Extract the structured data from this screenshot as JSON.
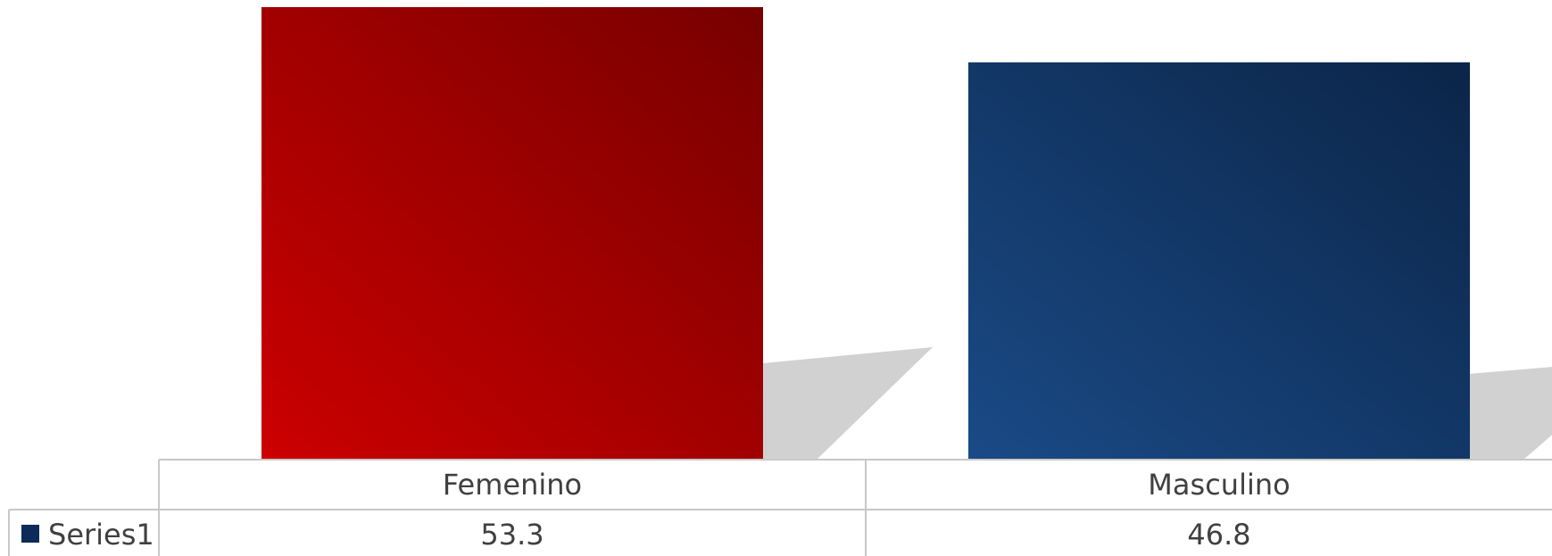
{
  "chart_data": {
    "type": "bar",
    "categories": [
      "Femenino",
      "Masculino"
    ],
    "series": [
      {
        "name": "Series1",
        "values": [
          53.3,
          46.8
        ]
      }
    ],
    "ylim": [
      0,
      53.3
    ],
    "legend": "data-table",
    "grid": false
  },
  "colors": {
    "femenino_light": "#cc0000",
    "femenino_dark": "#770000",
    "masculino_light": "#1a4a86",
    "masculino_dark": "#0b2548",
    "legend_swatch": "#0d2a5a",
    "table_border": "#c8c8c8",
    "shadow": "#cccccc",
    "text": "#404040"
  }
}
